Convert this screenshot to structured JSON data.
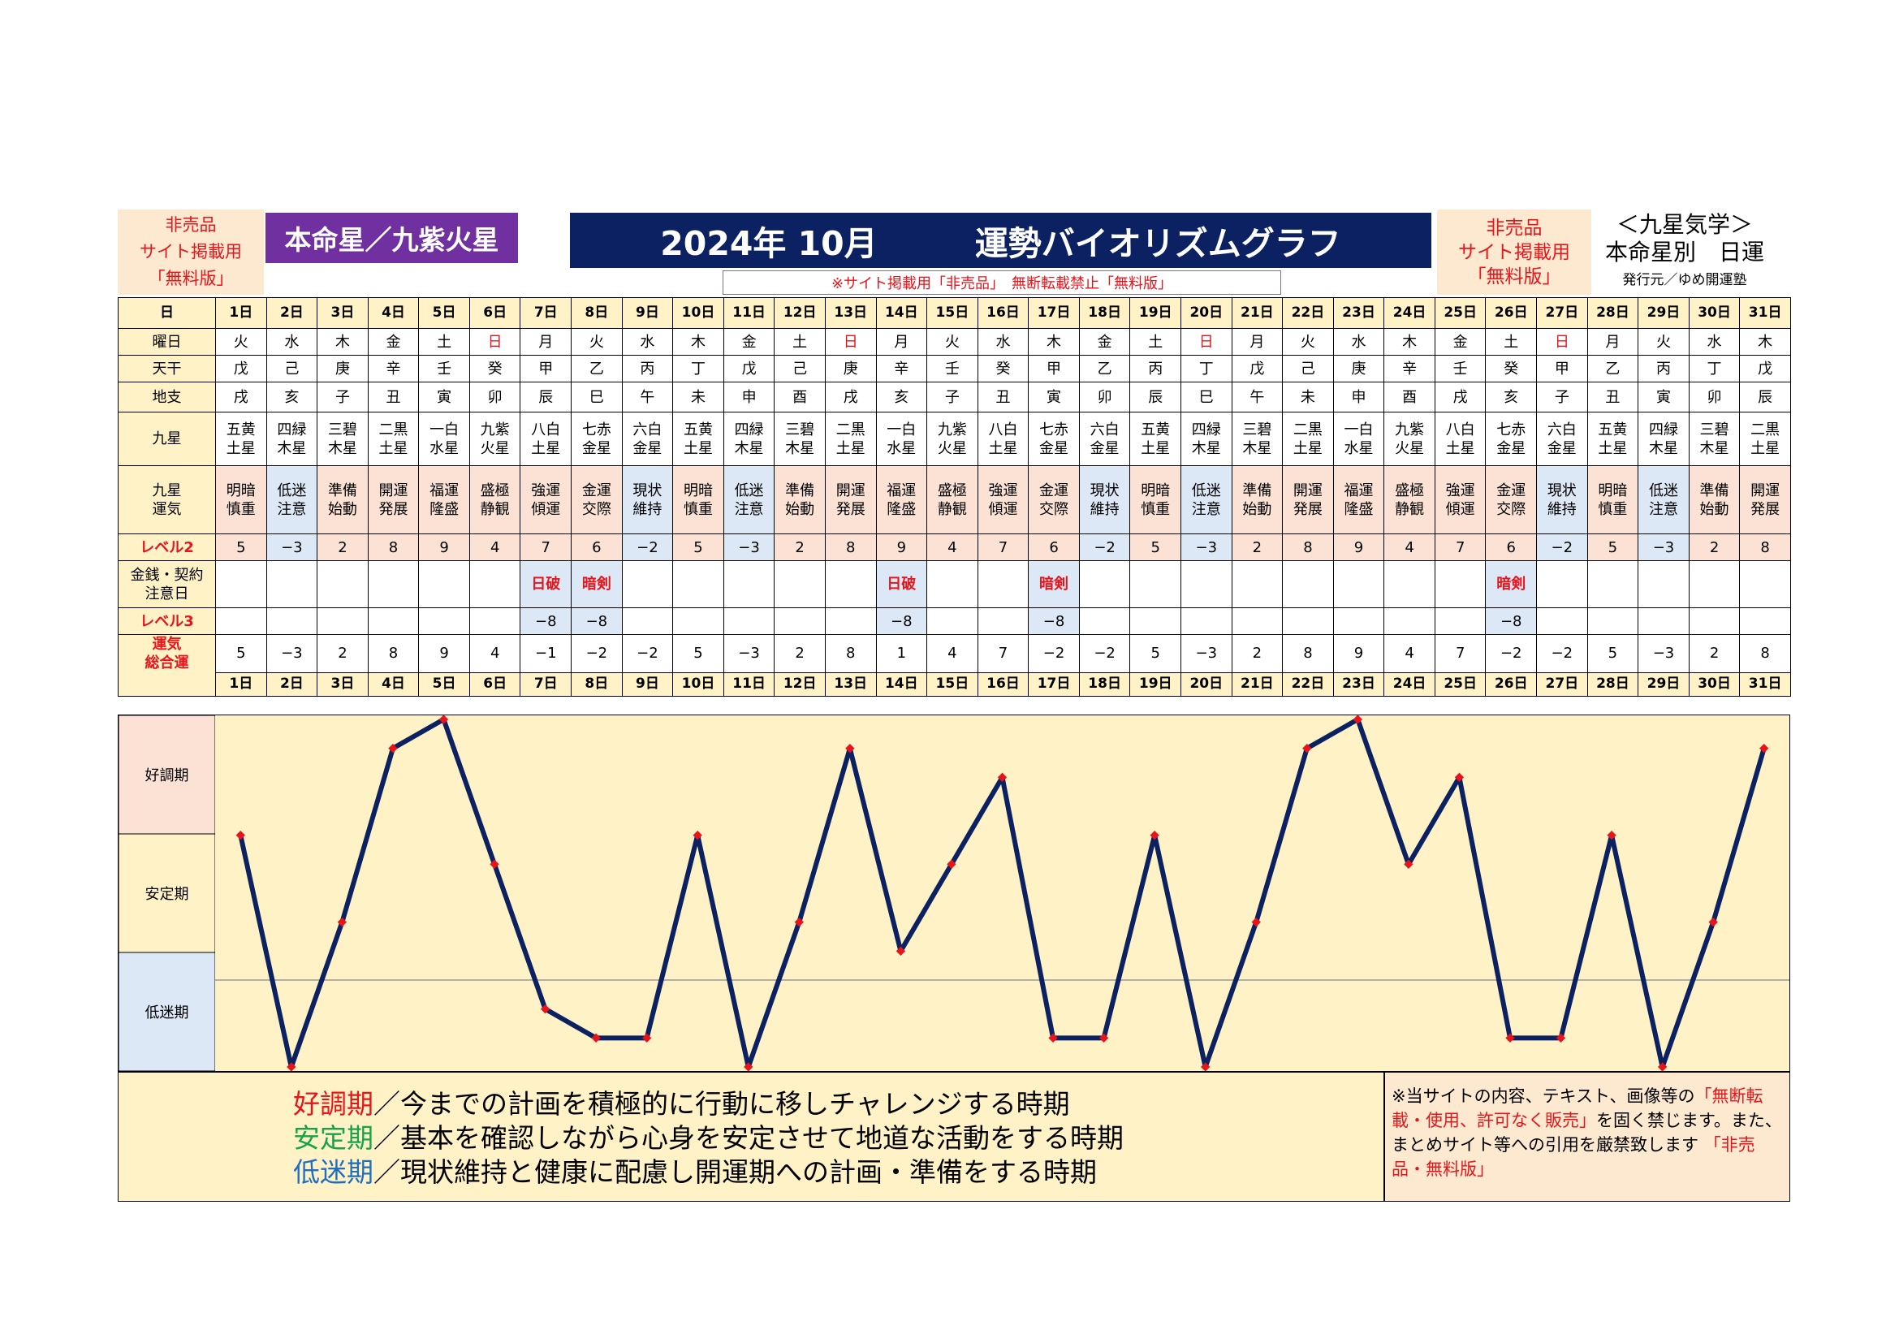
{
  "header": {
    "left_lines": [
      "非売品",
      "サイト掲載用",
      "「無料版」"
    ],
    "honmei": "本命星／九紫火星",
    "title_year_month": "2024年 10月",
    "title_main": "運勢バイオリズムグラフ",
    "right_lines": [
      "非売品",
      "サイト掲載用",
      "「無料版」"
    ],
    "far_line1": "＜九星気学＞",
    "far_line2": "本命星別　日運",
    "far_line3": "発行元／ゆめ開運塾",
    "banner": "※サイト掲載用「非売品」　無断転載禁止「無料版」"
  },
  "colors": {
    "line": "#0b2161",
    "marker": "#e8141b",
    "good_zone": "#fbe2d5",
    "stable_zone": "#fff2c6",
    "low_zone": "#dce8f5"
  },
  "row_labels": {
    "day": "日",
    "weekday": "曜日",
    "kan": "天干",
    "shi": "地支",
    "kyusei": "九星",
    "unki": "九星\n運気",
    "level2": "レベル2",
    "money": "金銭・契約\n注意日",
    "level3": "レベル3",
    "total": "運気\n総合運"
  },
  "days": [
    "1日",
    "2日",
    "3日",
    "4日",
    "5日",
    "6日",
    "7日",
    "8日",
    "9日",
    "10日",
    "11日",
    "12日",
    "13日",
    "14日",
    "15日",
    "16日",
    "17日",
    "18日",
    "19日",
    "20日",
    "21日",
    "22日",
    "23日",
    "24日",
    "25日",
    "26日",
    "27日",
    "28日",
    "29日",
    "30日",
    "31日"
  ],
  "weekdays": [
    "火",
    "水",
    "木",
    "金",
    "土",
    "日",
    "月",
    "火",
    "水",
    "木",
    "金",
    "土",
    "日",
    "月",
    "火",
    "水",
    "木",
    "金",
    "土",
    "日",
    "月",
    "火",
    "水",
    "木",
    "金",
    "土",
    "日",
    "月",
    "火",
    "水",
    "木"
  ],
  "kan": [
    "戊",
    "己",
    "庚",
    "辛",
    "壬",
    "癸",
    "甲",
    "乙",
    "丙",
    "丁",
    "戊",
    "己",
    "庚",
    "辛",
    "壬",
    "癸",
    "甲",
    "乙",
    "丙",
    "丁",
    "戊",
    "己",
    "庚",
    "辛",
    "壬",
    "癸",
    "甲",
    "乙",
    "丙",
    "丁",
    "戊"
  ],
  "shi": [
    "戌",
    "亥",
    "子",
    "丑",
    "寅",
    "卯",
    "辰",
    "巳",
    "午",
    "未",
    "申",
    "酉",
    "戌",
    "亥",
    "子",
    "丑",
    "寅",
    "卯",
    "辰",
    "巳",
    "午",
    "未",
    "申",
    "酉",
    "戌",
    "亥",
    "子",
    "丑",
    "寅",
    "卯",
    "辰"
  ],
  "kyusei": [
    "五黄\n土星",
    "四緑\n木星",
    "三碧\n木星",
    "二黒\n土星",
    "一白\n水星",
    "九紫\n火星",
    "八白\n土星",
    "七赤\n金星",
    "六白\n金星",
    "五黄\n土星",
    "四緑\n木星",
    "三碧\n木星",
    "二黒\n土星",
    "一白\n水星",
    "九紫\n火星",
    "八白\n土星",
    "七赤\n金星",
    "六白\n金星",
    "五黄\n土星",
    "四緑\n木星",
    "三碧\n木星",
    "二黒\n土星",
    "一白\n水星",
    "九紫\n火星",
    "八白\n土星",
    "七赤\n金星",
    "六白\n金星",
    "五黄\n土星",
    "四緑\n木星",
    "三碧\n木星",
    "二黒\n土星"
  ],
  "unki": [
    "明暗\n慎重",
    "低迷\n注意",
    "準備\n始動",
    "開運\n発展",
    "福運\n隆盛",
    "盛極\n静観",
    "強運\n傾運",
    "金運\n交際",
    "現状\n維持",
    "明暗\n慎重",
    "低迷\n注意",
    "準備\n始動",
    "開運\n発展",
    "福運\n隆盛",
    "盛極\n静観",
    "強運\n傾運",
    "金運\n交際",
    "現状\n維持",
    "明暗\n慎重",
    "低迷\n注意",
    "準備\n始動",
    "開運\n発展",
    "福運\n隆盛",
    "盛極\n静観",
    "強運\n傾運",
    "金運\n交際",
    "現状\n維持",
    "明暗\n慎重",
    "低迷\n注意",
    "準備\n始動",
    "開運\n発展"
  ],
  "level2": [
    "5",
    "−3",
    "2",
    "8",
    "9",
    "4",
    "7",
    "6",
    "−2",
    "5",
    "−3",
    "2",
    "8",
    "9",
    "4",
    "7",
    "6",
    "−2",
    "5",
    "−3",
    "2",
    "8",
    "9",
    "4",
    "7",
    "6",
    "−2",
    "5",
    "−3",
    "2",
    "8"
  ],
  "money": [
    "",
    "",
    "",
    "",
    "",
    "",
    "日破",
    "暗剣",
    "",
    "",
    "",
    "",
    "",
    "日破",
    "",
    "",
    "暗剣",
    "",
    "",
    "",
    "",
    "",
    "",
    "",
    "",
    "暗剣",
    "",
    "",
    "",
    "",
    ""
  ],
  "level3": [
    "",
    "",
    "",
    "",
    "",
    "",
    "−8",
    "−8",
    "",
    "",
    "",
    "",
    "",
    "−8",
    "",
    "",
    "−8",
    "",
    "",
    "",
    "",
    "",
    "",
    "",
    "",
    "−8",
    "",
    "",
    "",
    "",
    ""
  ],
  "total": [
    "5",
    "−3",
    "2",
    "8",
    "9",
    "4",
    "−1",
    "−2",
    "−2",
    "5",
    "−3",
    "2",
    "8",
    "1",
    "4",
    "7",
    "−2",
    "−2",
    "5",
    "−3",
    "2",
    "8",
    "9",
    "4",
    "7",
    "−2",
    "−2",
    "5",
    "−3",
    "2",
    "8"
  ],
  "zones": {
    "good": "好調期",
    "stable": "安定期",
    "low": "低迷期"
  },
  "chart_data": {
    "type": "line",
    "x": [
      "1日",
      "2日",
      "3日",
      "4日",
      "5日",
      "6日",
      "7日",
      "8日",
      "9日",
      "10日",
      "11日",
      "12日",
      "13日",
      "14日",
      "15日",
      "16日",
      "17日",
      "18日",
      "19日",
      "20日",
      "21日",
      "22日",
      "23日",
      "24日",
      "25日",
      "26日",
      "27日",
      "28日",
      "29日",
      "30日",
      "31日"
    ],
    "series": [
      {
        "values": [
          5,
          -3,
          2,
          8,
          9,
          4,
          -1,
          -2,
          -2,
          5,
          -3,
          2,
          8,
          1,
          4,
          7,
          -2,
          -2,
          5,
          -3,
          2,
          8,
          9,
          4,
          7,
          -2,
          -2,
          5,
          -3,
          2,
          8
        ]
      }
    ],
    "ylim": [
      -3,
      9
    ],
    "grid": false
  },
  "footer": {
    "good_label": "好調期",
    "good_text": "／今までの計画を積極的に行動に移しチャレンジする時期",
    "stable_label": "安定期",
    "stable_text": "／基本を確認しながら心身を安定させて地道な活動をする時期",
    "low_label": "低迷期",
    "low_text": "／現状維持と健康に配慮し開運期への計画・準備をする時期",
    "notice_1": "※当サイトの内容、テキスト、画像等の",
    "notice_red": "「無断転載・使用、許可なく販売」",
    "notice_2": "を固く禁じます。また、まとめサイト等への引用を厳禁致します",
    "notice_red2": "「非売品・無料版」"
  }
}
